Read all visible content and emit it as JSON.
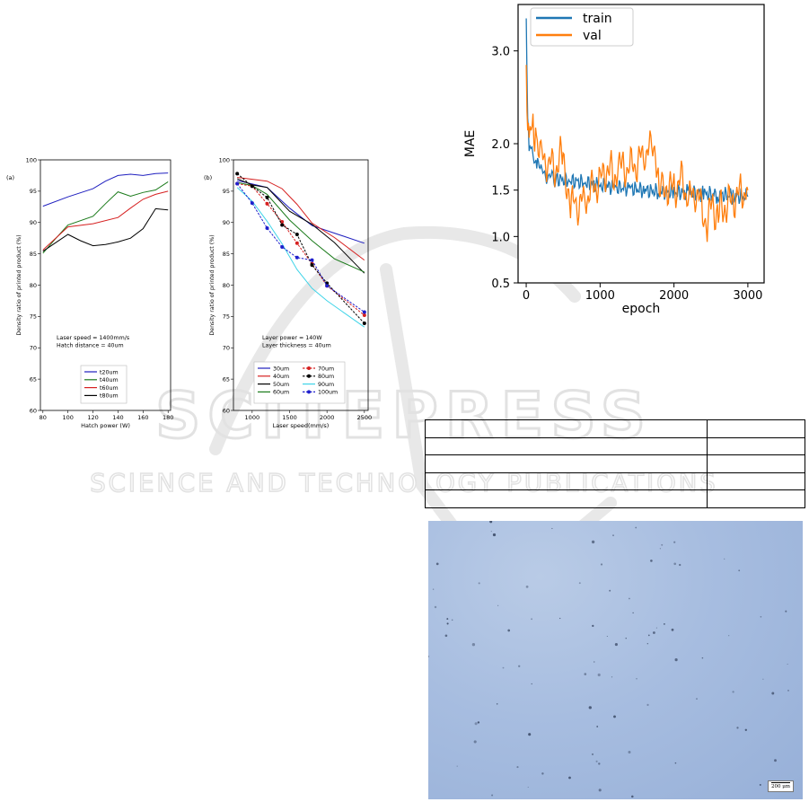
{
  "chart_data": [
    {
      "type": "line",
      "panel_label": "(a)",
      "xlabel": "Hatch power (W)",
      "ylabel": "Density ratio of printed product (%)",
      "xlim": [
        78,
        182
      ],
      "ylim": [
        60,
        100
      ],
      "xticks": [
        80,
        100,
        120,
        140,
        160,
        180
      ],
      "yticks": [
        60,
        65,
        70,
        75,
        80,
        85,
        90,
        95,
        100
      ],
      "annotation_lines": [
        "Laser speed = 1400mm/s",
        "Hatch distance = 40um"
      ],
      "legend_position": "bottom-center",
      "series": [
        {
          "name": "t20um",
          "color": "#1f1fbf",
          "x": [
            80,
            100,
            120,
            130,
            140,
            150,
            160,
            170,
            180
          ],
          "y": [
            92.6,
            94.1,
            95.4,
            96.6,
            97.5,
            97.7,
            97.5,
            97.8,
            97.9
          ]
        },
        {
          "name": "t40um",
          "color": "#1a7a1a",
          "x": [
            80,
            90,
            100,
            120,
            130,
            140,
            150,
            160,
            170,
            180
          ],
          "y": [
            85.1,
            87.4,
            89.6,
            91.0,
            93.0,
            94.9,
            94.2,
            94.8,
            95.2,
            96.5
          ]
        },
        {
          "name": "t60um",
          "color": "#d62020",
          "x": [
            80,
            100,
            120,
            140,
            150,
            160,
            170,
            180
          ],
          "y": [
            85.6,
            89.3,
            89.8,
            90.8,
            92.3,
            93.7,
            94.5,
            95.0
          ]
        },
        {
          "name": "t80um",
          "color": "#000000",
          "x": [
            80,
            100,
            110,
            120,
            130,
            140,
            150,
            160,
            170,
            180
          ],
          "y": [
            85.4,
            88.1,
            87.1,
            86.3,
            86.5,
            86.9,
            87.5,
            89.0,
            92.2,
            92.0
          ]
        }
      ]
    },
    {
      "type": "line",
      "panel_label": "(b)",
      "xlabel": "Laser speed(mm/s)",
      "ylabel": "Density ratio of printed product (%)",
      "xlim": [
        750,
        2550
      ],
      "ylim": [
        60,
        100
      ],
      "xticks": [
        1000,
        1500,
        2000,
        2500
      ],
      "yticks": [
        60,
        65,
        70,
        75,
        80,
        85,
        90,
        95,
        100
      ],
      "annotation_lines": [
        "Layer power = 140W",
        "Layer thickness = 40um"
      ],
      "legend_position": "bottom-center",
      "series": [
        {
          "name": "30um",
          "color": "#1f1fbf",
          "marker": false,
          "x": [
            800,
            1200,
            1500,
            1800,
            2100,
            2500
          ],
          "y": [
            96.7,
            95.6,
            92.3,
            89.5,
            88.3,
            86.7
          ]
        },
        {
          "name": "40um",
          "color": "#d62020",
          "marker": false,
          "x": [
            800,
            1200,
            1400,
            1600,
            1800,
            2100,
            2500
          ],
          "y": [
            97.2,
            96.6,
            95.4,
            92.9,
            89.9,
            87.6,
            84.0
          ]
        },
        {
          "name": "50um",
          "color": "#000000",
          "marker": false,
          "x": [
            800,
            1000,
            1200,
            1500,
            1800,
            2100,
            2500
          ],
          "y": [
            97.0,
            96.0,
            95.6,
            91.8,
            89.7,
            86.8,
            81.9
          ]
        },
        {
          "name": "60um",
          "color": "#1a7a1a",
          "marker": false,
          "x": [
            800,
            1000,
            1200,
            1500,
            1800,
            2100,
            2500
          ],
          "y": [
            96.4,
            95.9,
            94.5,
            90.4,
            87.1,
            84.2,
            82.1
          ]
        },
        {
          "name": "70um",
          "color": "#d62020",
          "marker": true,
          "x": [
            800,
            1000,
            1200,
            1400,
            1600,
            1800,
            2000,
            2500
          ],
          "y": [
            96.2,
            95.8,
            93.0,
            90.1,
            86.7,
            83.4,
            79.9,
            75.2
          ]
        },
        {
          "name": "80um",
          "color": "#000000",
          "marker": true,
          "x": [
            800,
            1000,
            1200,
            1400,
            1600,
            1800,
            2000,
            2500
          ],
          "y": [
            97.8,
            95.8,
            94.0,
            89.6,
            88.1,
            83.2,
            80.3,
            73.9
          ]
        },
        {
          "name": "90um",
          "color": "#3fd4e8",
          "marker": false,
          "x": [
            800,
            1000,
            1200,
            1400,
            1600,
            1800,
            2000,
            2500
          ],
          "y": [
            95.6,
            93.4,
            90.2,
            86.6,
            82.5,
            79.5,
            77.5,
            73.3
          ]
        },
        {
          "name": "100um",
          "color": "#1f1fcc",
          "marker": true,
          "x": [
            800,
            1000,
            1200,
            1400,
            1600,
            1800,
            2000,
            2500
          ],
          "y": [
            96.2,
            93.1,
            89.1,
            86.1,
            84.4,
            84.0,
            79.9,
            75.7
          ]
        }
      ]
    },
    {
      "type": "line",
      "xlabel": "epoch",
      "ylabel": "MAE",
      "xlim": [
        -110,
        3220
      ],
      "ylim": [
        0.5,
        3.5
      ],
      "xticks": [
        0,
        1000,
        2000,
        3000
      ],
      "yticks": [
        0.5,
        1.0,
        1.5,
        2.0,
        3.0
      ],
      "legend_position": "top-left",
      "series": [
        {
          "name": "train",
          "color": "#1f77b4",
          "x": [
            0,
            20,
            40,
            80,
            120,
            200,
            300,
            400,
            600,
            800,
            1000,
            1200,
            1400,
            1600,
            1800,
            2000,
            2200,
            2400,
            2600,
            2800,
            3000
          ],
          "y": [
            3.35,
            2.3,
            2.0,
            1.95,
            1.85,
            1.7,
            1.65,
            1.62,
            1.6,
            1.58,
            1.55,
            1.53,
            1.52,
            1.5,
            1.48,
            1.48,
            1.47,
            1.46,
            1.45,
            1.44,
            1.43
          ]
        },
        {
          "name": "val",
          "color": "#ff7f0e",
          "x": [
            0,
            20,
            40,
            80,
            150,
            200,
            300,
            400,
            500,
            550,
            600,
            650,
            700,
            800,
            900,
            1000,
            1100,
            1200,
            1250,
            1300,
            1400,
            1500,
            1600,
            1700,
            1750,
            1800,
            1850,
            1900,
            2000,
            2100,
            2200,
            2300,
            2400,
            2450,
            2500,
            2600,
            2700,
            2800,
            2900,
            3000
          ],
          "y": [
            2.85,
            2.2,
            2.25,
            2.15,
            2.05,
            1.85,
            1.8,
            1.75,
            1.9,
            1.6,
            1.25,
            1.4,
            1.35,
            1.4,
            1.5,
            1.6,
            1.75,
            1.65,
            1.8,
            1.7,
            1.75,
            1.8,
            1.9,
            1.95,
            2.0,
            1.45,
            1.5,
            1.55,
            1.5,
            1.6,
            1.4,
            1.5,
            1.25,
            1.15,
            1.3,
            1.25,
            1.35,
            1.4,
            1.45,
            1.5
          ]
        }
      ]
    }
  ],
  "watermark": {
    "big_text": "SCITEPRESS",
    "sub_text": "SCIENCE AND TECHNOLOGY PUBLICATIONS",
    "color": "#e4e4e4"
  },
  "table": {
    "rows": 5
  },
  "micrograph": {
    "scale_label": "200 μm"
  }
}
